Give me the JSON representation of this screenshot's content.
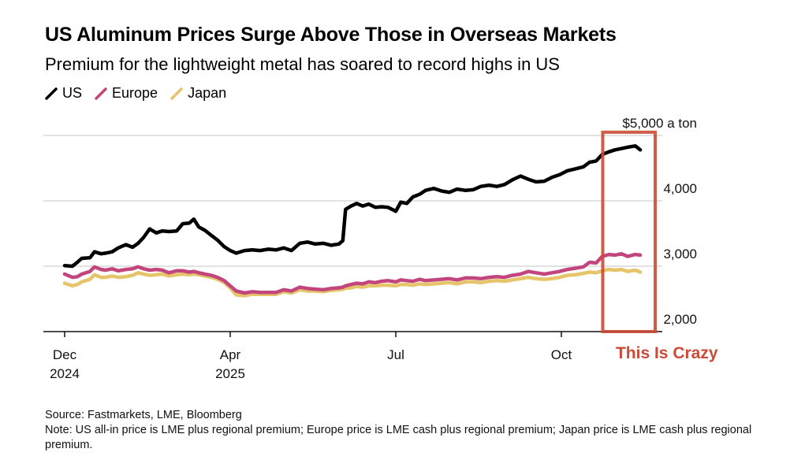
{
  "header": {
    "title": "US Aluminum Prices Surge Above Those in Overseas Markets",
    "subtitle": "Premium for the lightweight metal has soared to record highs in US"
  },
  "legend": [
    {
      "label": "US",
      "color": "#000000"
    },
    {
      "label": "Europe",
      "color": "#c2457e"
    },
    {
      "label": "Japan",
      "color": "#e5c46a"
    }
  ],
  "footer": {
    "source": "Source: Fastmarkets, LME, Bloomberg",
    "note": "Note: US all-in price is LME plus regional premium; Europe price is LME cash plus regional premium; Japan price is LME cash plus regional premium."
  },
  "annotation": {
    "label": "This Is Crazy",
    "color": "#cc4a36",
    "x_range_months": [
      9.75,
      10.7
    ],
    "y_range": [
      2000,
      5050
    ]
  },
  "chart_data": {
    "type": "line",
    "title": "US Aluminum Prices Surge Above Those in Overseas Markets",
    "subtitle": "Premium for the lightweight metal has soared to record highs in US",
    "xlabel": "",
    "ylabel": "$ a ton",
    "y_unit_label": "$5,000 a ton",
    "ylim": [
      2000,
      5000
    ],
    "y_ticks": [
      {
        "value": 5000,
        "label": "$5,000 a ton"
      },
      {
        "value": 4000,
        "label": "4,000"
      },
      {
        "value": 3000,
        "label": "3,000"
      },
      {
        "value": 2000,
        "label": "2,000"
      }
    ],
    "x_unit": "months since Dec 2024 tick",
    "xlim": [
      -0.05,
      10.5
    ],
    "x_ticks": [
      {
        "value": 0,
        "label": "Dec",
        "sublabel": "2024"
      },
      {
        "value": 3,
        "label": "Apr",
        "sublabel": "2025"
      },
      {
        "value": 6,
        "label": "Jul",
        "sublabel": ""
      },
      {
        "value": 9,
        "label": "Oct",
        "sublabel": ""
      }
    ],
    "grid": true,
    "legend_position": "top-left",
    "x": [
      0.0,
      0.14,
      0.23,
      0.31,
      0.46,
      0.54,
      0.66,
      0.74,
      0.86,
      0.97,
      1.11,
      1.23,
      1.33,
      1.43,
      1.54,
      1.66,
      1.77,
      1.89,
      2.03,
      2.14,
      2.26,
      2.34,
      2.43,
      2.54,
      2.66,
      2.77,
      2.89,
      3.0,
      3.11,
      3.26,
      3.4,
      3.54,
      3.69,
      3.83,
      3.97,
      4.11,
      4.26,
      4.4,
      4.54,
      4.69,
      4.83,
      4.97,
      5.04,
      5.09,
      5.19,
      5.29,
      5.4,
      5.51,
      5.63,
      5.74,
      5.86,
      6.0,
      6.09,
      6.2,
      6.31,
      6.43,
      6.54,
      6.69,
      6.83,
      6.97,
      7.11,
      7.26,
      7.4,
      7.54,
      7.69,
      7.83,
      7.97,
      8.11,
      8.26,
      8.4,
      8.54,
      8.69,
      8.83,
      8.97,
      9.11,
      9.26,
      9.4,
      9.51,
      9.63,
      9.74,
      9.86,
      9.97,
      10.09,
      10.2,
      10.34,
      10.43
    ],
    "series": [
      {
        "name": "US",
        "color": "#000000",
        "values": [
          3010,
          3000,
          3060,
          3120,
          3130,
          3220,
          3190,
          3200,
          3220,
          3280,
          3330,
          3290,
          3350,
          3440,
          3570,
          3510,
          3540,
          3530,
          3540,
          3650,
          3660,
          3720,
          3600,
          3550,
          3470,
          3400,
          3300,
          3240,
          3200,
          3240,
          3250,
          3240,
          3260,
          3250,
          3280,
          3240,
          3350,
          3370,
          3340,
          3350,
          3320,
          3340,
          3390,
          3870,
          3920,
          3960,
          3920,
          3950,
          3900,
          3910,
          3900,
          3840,
          3980,
          3960,
          4060,
          4100,
          4160,
          4190,
          4150,
          4130,
          4180,
          4160,
          4170,
          4220,
          4240,
          4220,
          4250,
          4320,
          4380,
          4330,
          4290,
          4300,
          4360,
          4400,
          4460,
          4490,
          4520,
          4590,
          4610,
          4710,
          4750,
          4780,
          4800,
          4820,
          4840,
          4780
        ]
      },
      {
        "name": "Europe",
        "color": "#c2457e",
        "values": [
          2880,
          2830,
          2840,
          2880,
          2920,
          2990,
          2950,
          2940,
          2960,
          2930,
          2950,
          2960,
          2990,
          2960,
          2940,
          2950,
          2940,
          2900,
          2930,
          2930,
          2910,
          2920,
          2900,
          2880,
          2860,
          2830,
          2780,
          2700,
          2620,
          2590,
          2610,
          2600,
          2600,
          2600,
          2640,
          2620,
          2680,
          2660,
          2650,
          2640,
          2660,
          2670,
          2680,
          2700,
          2720,
          2740,
          2730,
          2760,
          2750,
          2770,
          2780,
          2760,
          2790,
          2780,
          2770,
          2800,
          2780,
          2790,
          2800,
          2810,
          2790,
          2820,
          2820,
          2810,
          2830,
          2840,
          2830,
          2860,
          2880,
          2920,
          2900,
          2880,
          2900,
          2920,
          2950,
          2970,
          2990,
          3060,
          3050,
          3150,
          3180,
          3170,
          3190,
          3150,
          3180,
          3170
        ]
      },
      {
        "name": "Japan",
        "color": "#e5c46a",
        "values": [
          2740,
          2700,
          2720,
          2760,
          2800,
          2870,
          2830,
          2830,
          2850,
          2830,
          2840,
          2860,
          2900,
          2880,
          2860,
          2870,
          2880,
          2850,
          2870,
          2880,
          2870,
          2880,
          2870,
          2850,
          2830,
          2800,
          2750,
          2670,
          2560,
          2550,
          2570,
          2570,
          2570,
          2570,
          2610,
          2590,
          2640,
          2620,
          2620,
          2610,
          2630,
          2640,
          2650,
          2660,
          2670,
          2690,
          2680,
          2700,
          2700,
          2710,
          2710,
          2700,
          2720,
          2720,
          2710,
          2730,
          2720,
          2730,
          2740,
          2750,
          2730,
          2760,
          2760,
          2750,
          2770,
          2780,
          2770,
          2790,
          2810,
          2830,
          2810,
          2800,
          2810,
          2830,
          2860,
          2870,
          2890,
          2910,
          2900,
          2930,
          2950,
          2940,
          2950,
          2920,
          2940,
          2910
        ]
      }
    ]
  }
}
